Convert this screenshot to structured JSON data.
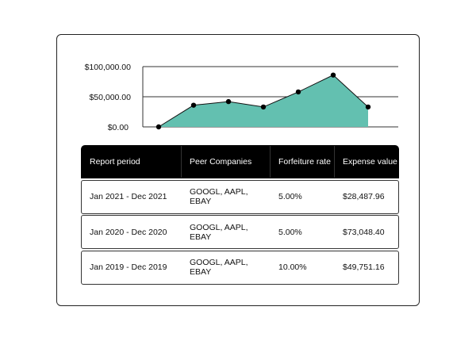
{
  "chart_data": {
    "type": "area",
    "x": [
      1,
      2,
      3,
      4,
      5,
      6,
      7
    ],
    "values": [
      0,
      36000,
      42000,
      33000,
      58000,
      86000,
      33000
    ],
    "yticks": [
      "$0.00",
      "$50,000.00",
      "$100,000.00"
    ],
    "ylim": [
      0,
      100000
    ],
    "fill_color": "#63c0b0",
    "line_color": "#111111",
    "title": "",
    "xlabel": "",
    "ylabel": ""
  },
  "table": {
    "headers": [
      "Report period",
      "Peer Companies",
      "Forfeiture rate",
      "Expense value"
    ],
    "rows": [
      [
        "Jan 2021 - Dec 2021",
        "GOOGL, AAPL, EBAY",
        "5.00%",
        "$28,487.96"
      ],
      [
        "Jan 2020 - Dec 2020",
        "GOOGL, AAPL, EBAY",
        "5.00%",
        "$73,048.40"
      ],
      [
        "Jan 2019 - Dec 2019",
        "GOOGL, AAPL, EBAY",
        "10.00%",
        "$49,751.16"
      ]
    ]
  }
}
